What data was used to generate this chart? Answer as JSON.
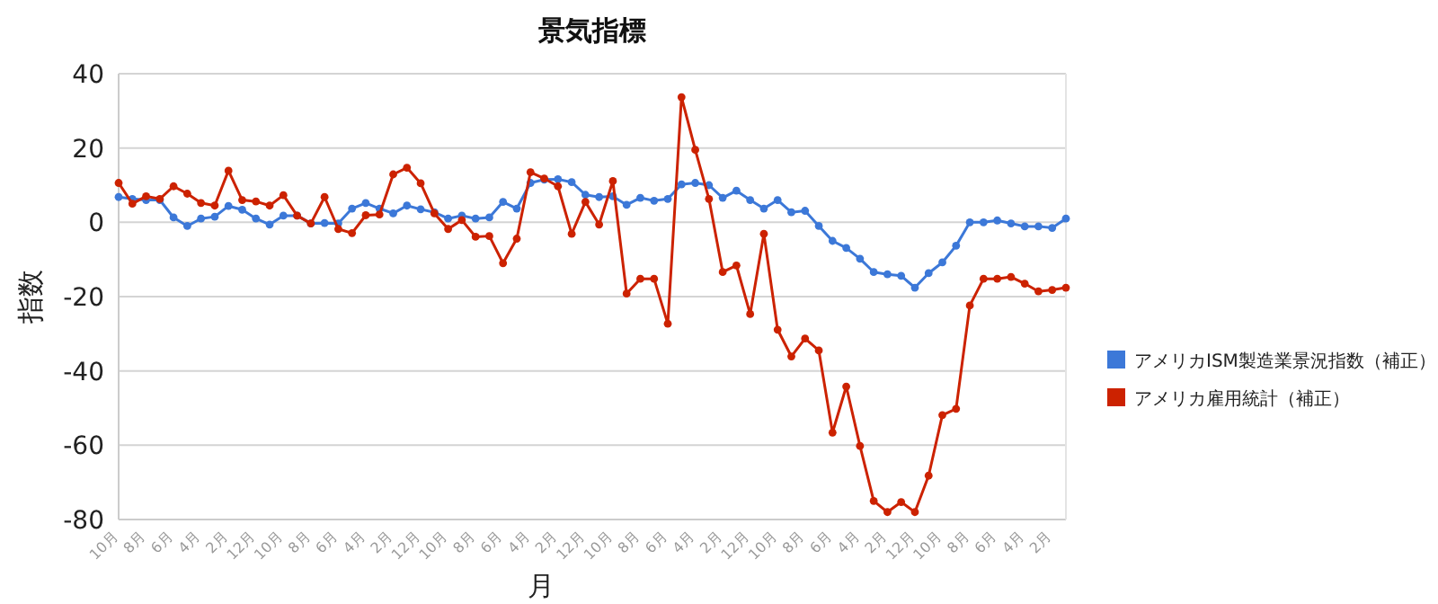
{
  "chart_data": {
    "type": "line",
    "title": "景気指標",
    "xlabel": "月",
    "ylabel": "指数",
    "categories": [
      "10月",
      null,
      "8月",
      null,
      "6月",
      null,
      "4月",
      null,
      "2月",
      null,
      "12月",
      null,
      "10月",
      null,
      "8月",
      null,
      "6月",
      null,
      "4月",
      null,
      "2月",
      null,
      "12月",
      null,
      "10月",
      null,
      "8月",
      null,
      "6月",
      null,
      "4月",
      null,
      "2月",
      null,
      "12月",
      null,
      "10月",
      null,
      "8月",
      null,
      "6月",
      null,
      "4月",
      null,
      "2月",
      null,
      "12月",
      null,
      "10月",
      null,
      "8月",
      null,
      "6月",
      null,
      "4月",
      null,
      "2月",
      null,
      "12月",
      null,
      "10月",
      null,
      "8月",
      null,
      "6月",
      null,
      "4月",
      null,
      "2月",
      null
    ],
    "series": [
      {
        "name": "アメリカISM製造業景況指数（補正）",
        "color": "#3c78d8",
        "values": [
          6.8,
          6.3,
          6,
          6,
          1.3,
          -1,
          1,
          1.5,
          4.4,
          3.4,
          1,
          -0.6,
          1.8,
          1.8,
          -0.3,
          -0.2,
          -0.3,
          3.7,
          5.2,
          3.7,
          2.4,
          4.5,
          3.5,
          2.7,
          1,
          1.8,
          1,
          1.3,
          5.5,
          3.7,
          10.6,
          11.5,
          11.6,
          10.8,
          7.4,
          6.8,
          7,
          4.7,
          6.6,
          5.8,
          6.3,
          10.2,
          10.6,
          10,
          6.6,
          8.5,
          6,
          3.7,
          6,
          2.7,
          3.1,
          -1,
          -5,
          -6.9,
          -9.8,
          -13.4,
          -14,
          -14.4,
          -17.6,
          -13.7,
          -10.8,
          -6.3,
          0,
          0,
          0.5,
          -0.3,
          -1.1,
          -1.1,
          -1.5,
          1
        ]
      },
      {
        "name": "アメリカ雇用統計（補正）",
        "color": "#cc2200",
        "values": [
          10.6,
          5,
          7,
          6.3,
          9.7,
          7.7,
          5.2,
          4.5,
          13.9,
          6,
          5.6,
          4.5,
          7.3,
          1.8,
          -0.3,
          6.8,
          -1.8,
          -2.9,
          1.9,
          2.1,
          12.9,
          14.7,
          10.5,
          2.4,
          -1.8,
          0.6,
          -3.9,
          -3.7,
          -11,
          -4.4,
          13.5,
          11.8,
          9.7,
          -3.1,
          5.5,
          -0.6,
          11.1,
          -19.2,
          -15.2,
          -15.2,
          -27.3,
          33.7,
          19.5,
          6.3,
          -13.4,
          -11.6,
          -24.7,
          -3.1,
          -28.9,
          -36.1,
          -31.3,
          -34.5,
          -56.6,
          -44.2,
          -60.2,
          -75,
          -78,
          -75.3,
          -78,
          -68.2,
          -51.9,
          -50.2,
          -22.4,
          -15.2,
          -15.2,
          -14.7,
          -16.5,
          -18.6,
          -18.2,
          -17.6
        ]
      }
    ],
    "ylim": [
      -80,
      40
    ],
    "yticks": [
      -80,
      -60,
      -40,
      -20,
      0,
      20,
      40
    ],
    "grid": "y",
    "legend": "right",
    "marker": "circle",
    "line_style": "solid"
  }
}
